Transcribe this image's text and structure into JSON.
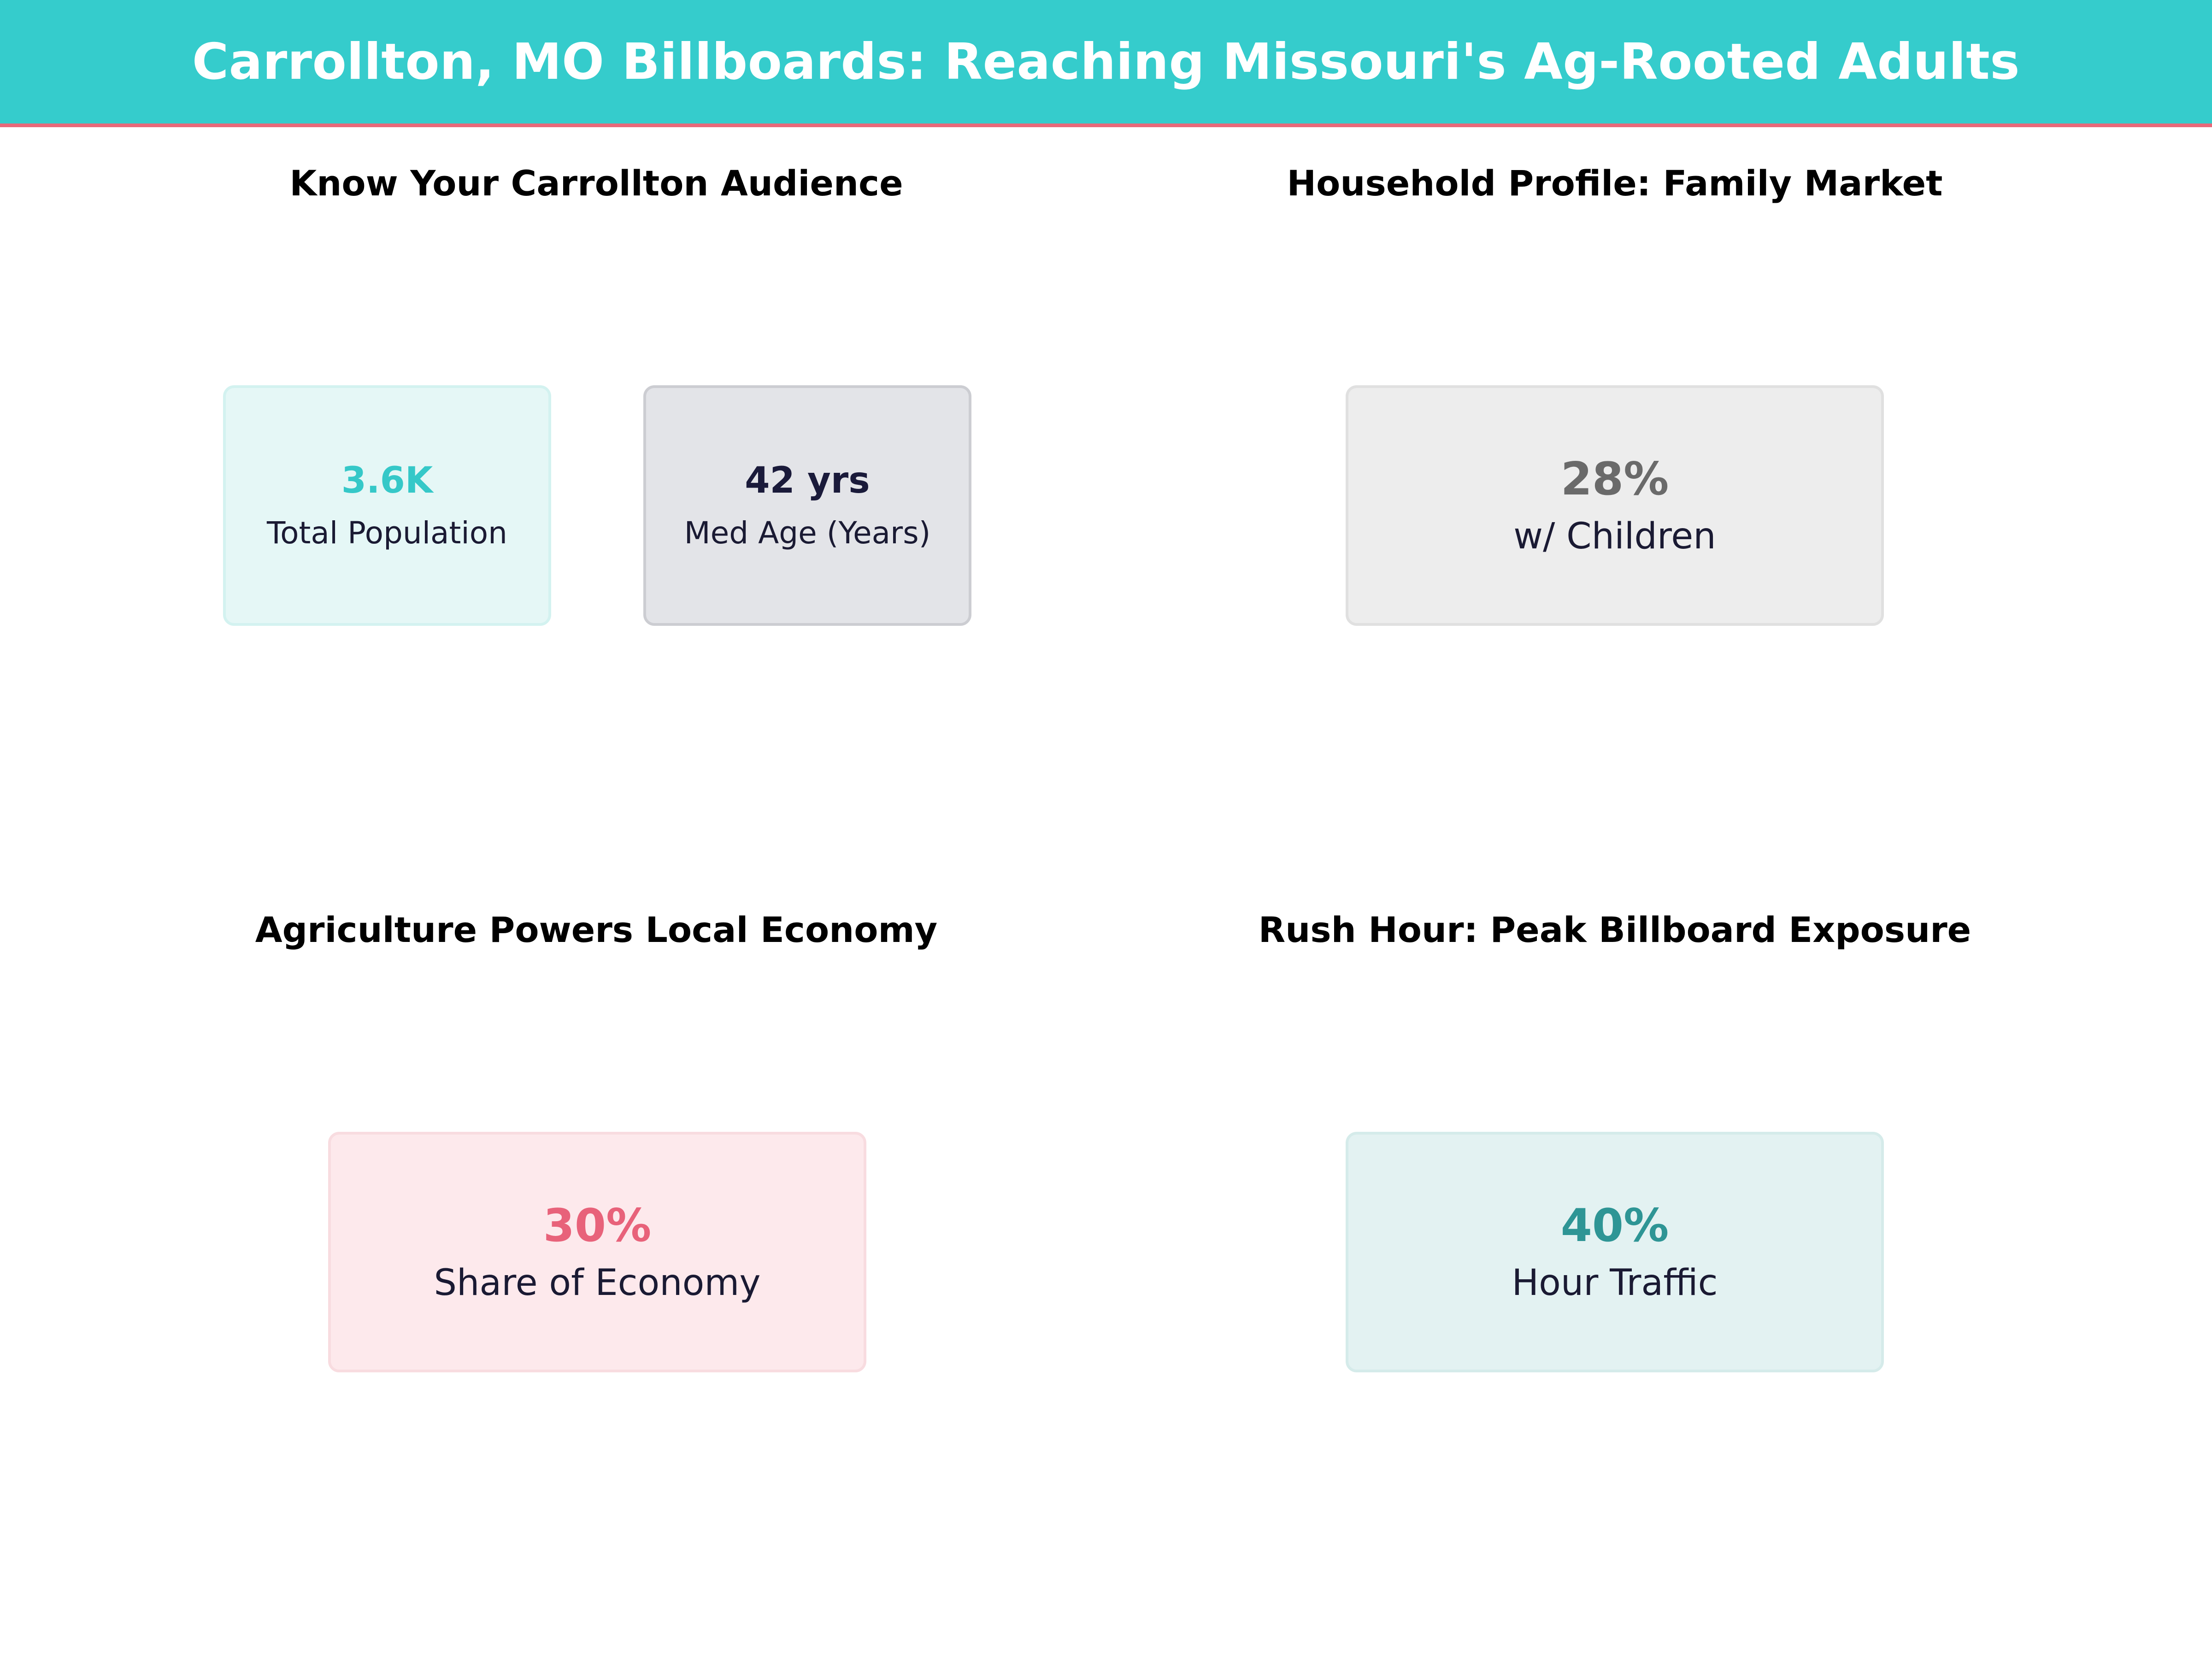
{
  "header": {
    "title": "Carrollton, MO Billboards: Reaching Missouri's Ag-Rooted Adults",
    "background_color": "#35CCCC",
    "accent_line_color": "#E8697A"
  },
  "panels": {
    "audience": {
      "title": "Know Your Carrollton Audience",
      "cards": [
        {
          "value": "3.6K",
          "label": "Total Population",
          "accent_color": "#35C8C8"
        },
        {
          "value": "42 yrs",
          "label": "Med Age (Years)",
          "accent_color": "#1a1a3a"
        }
      ]
    },
    "household": {
      "title": "Household Profile: Family Market",
      "cards": [
        {
          "value": "28%",
          "label": "w/ Children",
          "accent_color": "#6a6a6a"
        }
      ]
    },
    "economy": {
      "title": "Agriculture Powers Local Economy",
      "cards": [
        {
          "value": "30%",
          "label": "Share of Economy",
          "accent_color": "#E8627A"
        }
      ]
    },
    "rush_hour": {
      "title": "Rush Hour: Peak Billboard Exposure",
      "cards": [
        {
          "value": "40%",
          "label": "Hour Traffic",
          "accent_color": "#2E9595"
        }
      ]
    }
  }
}
